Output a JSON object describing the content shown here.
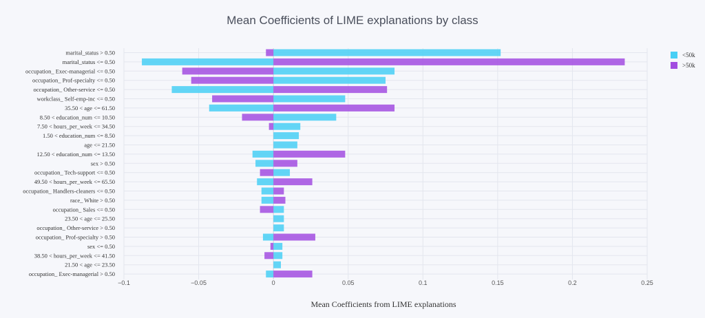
{
  "chart_data": {
    "type": "bar",
    "orientation": "horizontal",
    "barmode": "overlay",
    "title": "Mean Coefficients of LIME explanations by class",
    "xlabel": "Mean Coefficients from LIME explanations",
    "ylabel": "",
    "xlim": [
      -0.1,
      0.25
    ],
    "xticks": [
      -0.1,
      -0.05,
      0,
      0.05,
      0.1,
      0.15,
      0.2,
      0.25
    ],
    "xtick_labels": [
      "−0.1",
      "−0.05",
      "0",
      "0.05",
      "0.1",
      "0.15",
      "0.2",
      "0.25"
    ],
    "grid": true,
    "legend_position": "top-right",
    "categories": [
      "marital_status > 0.50",
      "marital_status <= 0.50",
      "occupation_ Exec-managerial <= 0.50",
      "occupation_ Prof-specialty <= 0.50",
      "occupation_ Other-service <= 0.50",
      "workclass_ Self-emp-inc <= 0.50",
      "35.50 < age <= 61.50",
      "8.50 < education_num <= 10.50",
      "7.50 < hours_per_week <= 34.50",
      "1.50 < education_num <= 8.50",
      "age <= 21.50",
      "12.50 < education_num <= 13.50",
      "sex > 0.50",
      "occupation_ Tech-support <= 0.50",
      "49.50 < hours_per_week <= 65.50",
      "occupation_ Handlers-cleaners <= 0.50",
      "race_ White > 0.50",
      "occupation_ Sales <= 0.50",
      "23.50 < age <= 25.50",
      "occupation_ Other-service > 0.50",
      "occupation_ Prof-specialty > 0.50",
      "sex <= 0.50",
      "38.50 < hours_per_week <= 41.50",
      "21.50 < age <= 23.50",
      "occupation_ Exec-managerial > 0.50"
    ],
    "series": [
      {
        "name": "<50k",
        "color": "#48cff5",
        "values": [
          0.152,
          -0.088,
          0.081,
          0.075,
          -0.068,
          0.048,
          -0.043,
          0.042,
          0.018,
          0.017,
          0.016,
          -0.014,
          -0.012,
          0.011,
          -0.011,
          -0.008,
          -0.008,
          0.007,
          0.007,
          0.007,
          -0.007,
          0.006,
          0.006,
          0.005,
          -0.005
        ]
      },
      {
        "name": ">50k",
        "color": "#a24de0",
        "values": [
          -0.005,
          0.235,
          -0.061,
          -0.055,
          0.076,
          -0.041,
          0.081,
          -0.021,
          -0.003,
          0.0,
          0.0,
          0.048,
          0.016,
          -0.009,
          0.026,
          0.007,
          0.008,
          -0.009,
          0.0,
          0.0,
          0.028,
          -0.002,
          -0.006,
          0.0,
          0.026
        ]
      }
    ]
  }
}
